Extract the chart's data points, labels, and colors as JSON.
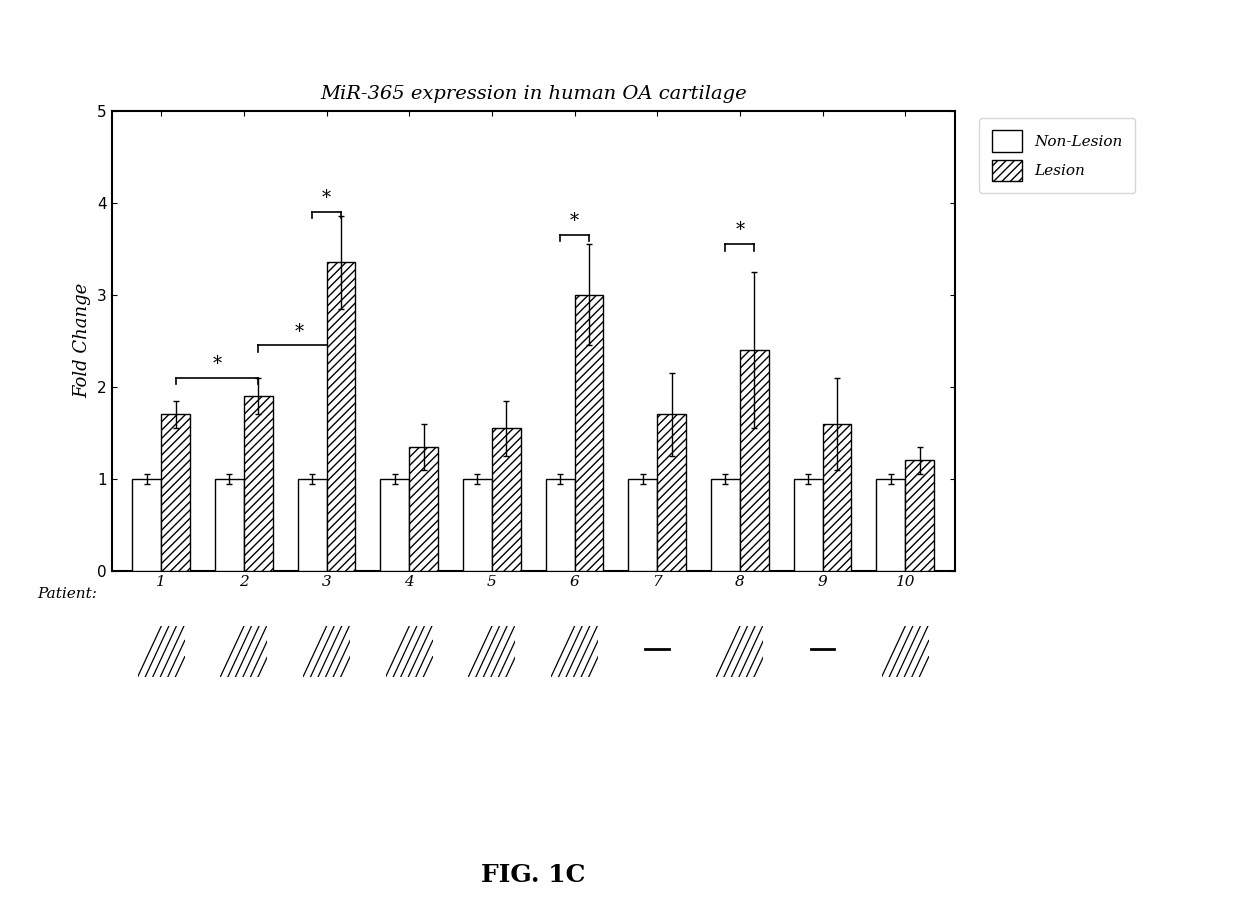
{
  "title": "MiR-365 expression in human OA cartilage",
  "ylabel": "Fold Change",
  "xlabel_prefix": "Patient:",
  "patients": [
    1,
    2,
    3,
    4,
    5,
    6,
    7,
    8,
    9,
    10
  ],
  "nonlesion_values": [
    1.0,
    1.0,
    1.0,
    1.0,
    1.0,
    1.0,
    1.0,
    1.0,
    1.0,
    1.0
  ],
  "nonlesion_errors": [
    0.05,
    0.05,
    0.05,
    0.05,
    0.05,
    0.05,
    0.05,
    0.05,
    0.05,
    0.05
  ],
  "lesion_values": [
    1.7,
    1.9,
    3.35,
    1.35,
    1.55,
    3.0,
    1.7,
    2.4,
    1.6,
    1.2
  ],
  "lesion_errors": [
    0.15,
    0.2,
    0.5,
    0.25,
    0.3,
    0.55,
    0.45,
    0.85,
    0.5,
    0.15
  ],
  "ylim": [
    0,
    5
  ],
  "yticks": [
    0,
    1,
    2,
    3,
    4,
    5
  ],
  "nonlesion_color": "white",
  "lesion_hatch": "////",
  "lesion_facecolor": "white",
  "bar_edgecolor": "black",
  "bar_width": 0.35,
  "figsize": [
    12.4,
    9.21
  ],
  "fig_caption": "FIG. 1C",
  "background_color": "white",
  "has_hatch_below": [
    true,
    true,
    true,
    true,
    true,
    true,
    false,
    true,
    false,
    true
  ]
}
